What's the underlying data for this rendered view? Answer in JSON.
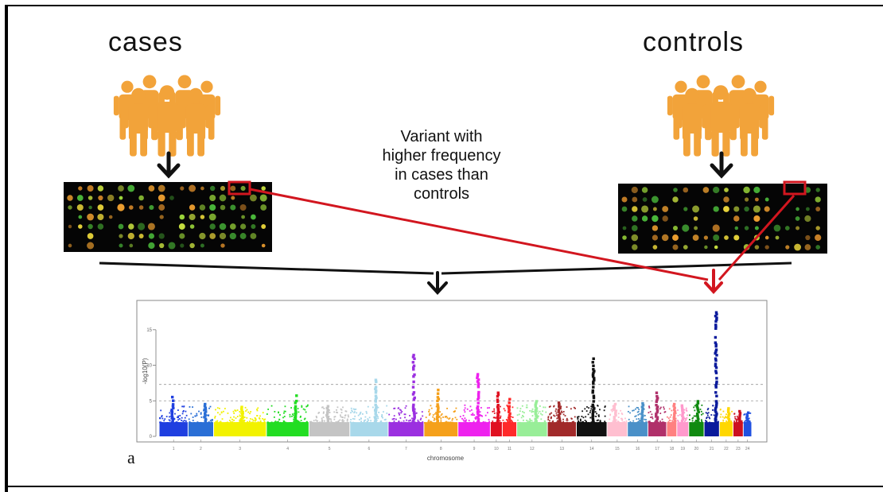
{
  "diagram": {
    "cases_label": "cases",
    "controls_label": "controls",
    "annotation": "Variant with\nhigher frequency\nin cases than\ncontrols",
    "panel_letter": "a",
    "colors": {
      "people": "#f2a33a",
      "highlight": "#d2161f",
      "arrow": "#111111"
    }
  },
  "chart_data": {
    "type": "scatter",
    "title": "",
    "xlabel": "chromosome",
    "ylabel": "-log10(P)",
    "ylim": [
      0,
      18
    ],
    "yticks": [
      0,
      5,
      10,
      15
    ],
    "thresholds": [
      7.3,
      5
    ],
    "chromosomes": [
      {
        "name": "1",
        "color": "#1f3fe0",
        "peak": 5.6
      },
      {
        "name": "2",
        "color": "#2a6fd6",
        "peak": 4.6
      },
      {
        "name": "3",
        "color": "#f2f200",
        "peak": 4.2
      },
      {
        "name": "4",
        "color": "#22dd22",
        "peak": 5.8
      },
      {
        "name": "5",
        "color": "#c4c4c4",
        "peak": 4.3
      },
      {
        "name": "6",
        "color": "#a8d8ea",
        "peak": 8.0
      },
      {
        "name": "7",
        "color": "#9b30e0",
        "peak": 11.5
      },
      {
        "name": "8",
        "color": "#f5a01a",
        "peak": 6.6
      },
      {
        "name": "9",
        "color": "#ee22ee",
        "peak": 8.8
      },
      {
        "name": "10",
        "color": "#e01020",
        "peak": 6.2
      },
      {
        "name": "11",
        "color": "#ff2a2a",
        "peak": 5.3
      },
      {
        "name": "12",
        "color": "#98ee98",
        "peak": 5.0
      },
      {
        "name": "13",
        "color": "#a12a2a",
        "peak": 4.8
      },
      {
        "name": "14",
        "color": "#111111",
        "peak": 11.0
      },
      {
        "name": "15",
        "color": "#ffbfd0",
        "peak": 4.6
      },
      {
        "name": "16",
        "color": "#4a90c8",
        "peak": 4.7
      },
      {
        "name": "17",
        "color": "#b0306a",
        "peak": 6.2
      },
      {
        "name": "18",
        "color": "#ff8080",
        "peak": 4.6
      },
      {
        "name": "19",
        "color": "#ff99cc",
        "peak": 4.4
      },
      {
        "name": "20",
        "color": "#108a10",
        "peak": 5.0
      },
      {
        "name": "21",
        "color": "#0a1a9c",
        "peak": 17.5
      },
      {
        "name": "22",
        "color": "#ffd700",
        "peak": 4.0
      },
      {
        "name": "23",
        "color": "#cc1020",
        "peak": 3.6
      },
      {
        "name": "24",
        "color": "#2050e0",
        "peak": 3.4
      }
    ]
  }
}
